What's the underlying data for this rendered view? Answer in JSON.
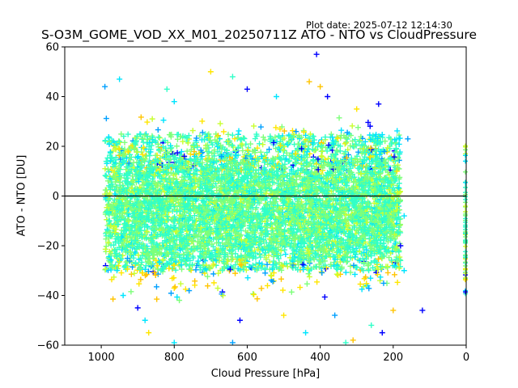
{
  "plot_date": "Plot date: 2025-07-12 12:14:30",
  "chart_data": {
    "type": "scatter",
    "title": "S-O3M_GOME_VOD_XX_M01_20250711Z ATO - NTO vs CloudPressure",
    "xlabel": "Cloud Pressure [hPa]",
    "ylabel": "ATO - NTO [DU]",
    "xlim": [
      1100,
      0
    ],
    "ylim": [
      -60,
      60
    ],
    "x_ticks": [
      1000,
      800,
      600,
      400,
      200,
      0
    ],
    "y_ticks": [
      60,
      40,
      20,
      0,
      -20,
      -40,
      -60
    ],
    "x_inverted": true,
    "marker": "+",
    "zero_line": 0,
    "grid": false,
    "colors": [
      "#0000ff",
      "#00a0ff",
      "#00e5ff",
      "#30ffc8",
      "#7dff7a",
      "#c8ff30",
      "#ffe600",
      "#ffc400"
    ],
    "point_cloud": {
      "x_range": [
        180,
        990
      ],
      "core_y_range": [
        -30,
        25
      ],
      "outer_y_range": [
        -60,
        57
      ],
      "edge_points_x": 0,
      "edge_points_y_range": [
        -40,
        22
      ]
    },
    "sample_points": [
      [
        410,
        57
      ],
      [
        700,
        50
      ],
      [
        950,
        47
      ],
      [
        990,
        44
      ],
      [
        820,
        43
      ],
      [
        400,
        44
      ],
      [
        380,
        40
      ],
      [
        520,
        40
      ],
      [
        240,
        37
      ],
      [
        300,
        35
      ],
      [
        800,
        38
      ],
      [
        160,
        23
      ],
      [
        640,
        48
      ],
      [
        430,
        46
      ],
      [
        600,
        43
      ],
      [
        940,
        -40
      ],
      [
        900,
        -45
      ],
      [
        870,
        -55
      ],
      [
        800,
        -59
      ],
      [
        640,
        -59
      ],
      [
        330,
        -59
      ],
      [
        310,
        -58
      ],
      [
        230,
        -55
      ],
      [
        880,
        -50
      ],
      [
        620,
        -50
      ],
      [
        500,
        -48
      ],
      [
        440,
        -55
      ],
      [
        360,
        -48
      ],
      [
        260,
        -52
      ],
      [
        200,
        -46
      ],
      [
        120,
        -46
      ],
      [
        170,
        -30
      ],
      [
        180,
        -20
      ],
      [
        190,
        10
      ],
      [
        170,
        -8
      ]
    ]
  }
}
